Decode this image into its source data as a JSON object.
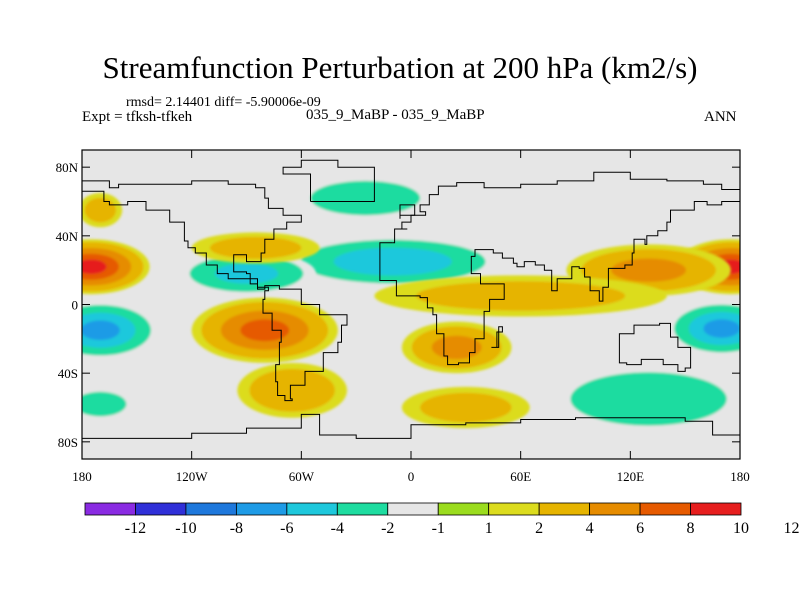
{
  "chart_data": {
    "type": "heatmap",
    "title": "Streamfunction Perturbation at 200 hPa (km2/s)",
    "rmsd_text": "rmsd= 2.14401 diff= -5.90006e-09",
    "left_label": "Expt = tfksh-tfkeh",
    "center_label": "035_9_MaBP - 035_9_MaBP",
    "right_label": "ANN",
    "x_range": [
      -180,
      180
    ],
    "y_range": [
      -90,
      90
    ],
    "x_ticks": [
      {
        "lon": -180,
        "label": "180"
      },
      {
        "lon": -120,
        "label": "120W"
      },
      {
        "lon": -60,
        "label": "60W"
      },
      {
        "lon": 0,
        "label": "0"
      },
      {
        "lon": 60,
        "label": "60E"
      },
      {
        "lon": 120,
        "label": "120E"
      },
      {
        "lon": 180,
        "label": "180"
      }
    ],
    "y_ticks": [
      {
        "lat": 80,
        "label": "80N"
      },
      {
        "lat": 40,
        "label": "40N"
      },
      {
        "lat": 0,
        "label": "0"
      },
      {
        "lat": -40,
        "label": "40S"
      },
      {
        "lat": -80,
        "label": "80S"
      }
    ],
    "colorbar": {
      "colors": [
        "#8a2be2",
        "#3030d8",
        "#1e78dc",
        "#1e9be6",
        "#1ec8dc",
        "#1edca0",
        "#e6e6e6",
        "#9bdc1e",
        "#dcdc1e",
        "#e6b400",
        "#e68c00",
        "#e65a00",
        "#e61e1e"
      ],
      "ticks": [
        "-12",
        "-10",
        "-8",
        "-6",
        "-4",
        "-2",
        "-1",
        "1",
        "2",
        "4",
        "6",
        "8",
        "10",
        "12"
      ]
    },
    "anomalies": [
      {
        "lon": -175,
        "lat": 22,
        "rx": 32,
        "ry": 16,
        "value": 8
      },
      {
        "lon": 175,
        "lat": 22,
        "rx": 30,
        "ry": 16,
        "value": 8
      },
      {
        "lon": -170,
        "lat": -15,
        "rx": 32,
        "ry": 17,
        "value": -6
      },
      {
        "lon": 170,
        "lat": -14,
        "rx": 30,
        "ry": 16,
        "value": -6
      },
      {
        "lon": -80,
        "lat": -15,
        "rx": 40,
        "ry": 19,
        "value": 6
      },
      {
        "lon": 25,
        "lat": -25,
        "rx": 30,
        "ry": 15,
        "value": 4
      },
      {
        "lon": -65,
        "lat": -50,
        "rx": 30,
        "ry": 16,
        "value": 3
      },
      {
        "lon": -10,
        "lat": 25,
        "rx": 60,
        "ry": 15,
        "value": -5
      },
      {
        "lon": -90,
        "lat": 18,
        "rx": 38,
        "ry": 13,
        "value": -4
      },
      {
        "lon": -25,
        "lat": 62,
        "rx": 42,
        "ry": 14,
        "value": -2
      },
      {
        "lon": 130,
        "lat": 20,
        "rx": 45,
        "ry": 15,
        "value": 4
      },
      {
        "lon": -85,
        "lat": 33,
        "rx": 35,
        "ry": 9,
        "value": 2
      },
      {
        "lon": -170,
        "lat": 55,
        "rx": 12,
        "ry": 10,
        "value": 2
      },
      {
        "lon": 60,
        "lat": 5,
        "rx": 80,
        "ry": 12,
        "value": 2
      },
      {
        "lon": 130,
        "lat": -55,
        "rx": 55,
        "ry": 20,
        "value": -3
      },
      {
        "lon": 30,
        "lat": -60,
        "rx": 35,
        "ry": 12,
        "value": 2
      },
      {
        "lon": -170,
        "lat": -58,
        "rx": 20,
        "ry": 10,
        "value": -2
      }
    ],
    "coastlines": [
      [
        [
          -180,
          72
        ],
        [
          -165,
          68
        ],
        [
          -160,
          70
        ],
        [
          -140,
          70
        ],
        [
          -120,
          72
        ],
        [
          -100,
          70
        ],
        [
          -85,
          68
        ],
        [
          -80,
          62
        ],
        [
          -78,
          56
        ],
        [
          -70,
          52
        ],
        [
          -60,
          48
        ],
        [
          -68,
          44
        ],
        [
          -75,
          38
        ],
        [
          -80,
          30
        ],
        [
          -82,
          25
        ],
        [
          -90,
          29
        ],
        [
          -97,
          26
        ],
        [
          -97,
          19
        ],
        [
          -90,
          18
        ],
        [
          -88,
          15
        ],
        [
          -84,
          10
        ],
        [
          -78,
          8
        ],
        [
          -80,
          3
        ],
        [
          -81,
          -5
        ],
        [
          -76,
          -15
        ],
        [
          -71,
          -22
        ],
        [
          -72,
          -35
        ],
        [
          -74,
          -45
        ],
        [
          -73,
          -53
        ],
        [
          -69,
          -56
        ],
        [
          -65,
          -55
        ],
        [
          -66,
          -47
        ],
        [
          -58,
          -39
        ],
        [
          -48,
          -28
        ],
        [
          -40,
          -22
        ],
        [
          -38,
          -12
        ],
        [
          -35,
          -6
        ],
        [
          -50,
          0
        ],
        [
          -60,
          9
        ],
        [
          -72,
          11
        ],
        [
          -80,
          9
        ],
        [
          -84,
          12
        ],
        [
          -88,
          15
        ],
        [
          -92,
          15
        ],
        [
          -100,
          18
        ],
        [
          -106,
          23
        ],
        [
          -112,
          30
        ],
        [
          -118,
          33
        ],
        [
          -122,
          37
        ],
        [
          -124,
          42
        ],
        [
          -124,
          48
        ],
        [
          -132,
          55
        ],
        [
          -145,
          60
        ],
        [
          -155,
          58
        ],
        [
          -165,
          60
        ],
        [
          -168,
          66
        ],
        [
          -180,
          68
        ]
      ],
      [
        [
          -55,
          60
        ],
        [
          -45,
          60
        ],
        [
          -20,
          70
        ],
        [
          -20,
          80
        ],
        [
          -40,
          84
        ],
        [
          -60,
          80
        ],
        [
          -70,
          76
        ],
        [
          -55,
          60
        ]
      ],
      [
        [
          -10,
          36
        ],
        [
          -9,
          44
        ],
        [
          -2,
          44
        ],
        [
          -5,
          48
        ],
        [
          0,
          52
        ],
        [
          8,
          54
        ],
        [
          5,
          58
        ],
        [
          10,
          64
        ],
        [
          15,
          69
        ],
        [
          25,
          71
        ],
        [
          40,
          68
        ],
        [
          60,
          70
        ],
        [
          80,
          72
        ],
        [
          100,
          77
        ],
        [
          120,
          73
        ],
        [
          140,
          72
        ],
        [
          160,
          70
        ],
        [
          170,
          67
        ],
        [
          180,
          66
        ]
      ],
      [
        [
          -10,
          36
        ],
        [
          -17,
          20
        ],
        [
          -17,
          14
        ],
        [
          -8,
          5
        ],
        [
          5,
          4
        ],
        [
          9,
          4
        ],
        [
          9,
          -2
        ],
        [
          12,
          -6
        ],
        [
          14,
          -17
        ],
        [
          18,
          -30
        ],
        [
          20,
          -35
        ],
        [
          26,
          -34
        ],
        [
          32,
          -28
        ],
        [
          35,
          -20
        ],
        [
          40,
          -15
        ],
        [
          40,
          -4
        ],
        [
          43,
          3
        ],
        [
          51,
          12
        ],
        [
          44,
          12
        ],
        [
          38,
          18
        ],
        [
          33,
          28
        ],
        [
          35,
          32
        ],
        [
          45,
          30
        ],
        [
          50,
          27
        ],
        [
          56,
          24
        ],
        [
          58,
          22
        ],
        [
          62,
          25
        ],
        [
          68,
          23
        ],
        [
          73,
          20
        ],
        [
          77,
          8
        ],
        [
          80,
          15
        ],
        [
          88,
          22
        ],
        [
          92,
          21
        ],
        [
          95,
          16
        ],
        [
          98,
          8
        ],
        [
          103,
          2
        ],
        [
          105,
          10
        ],
        [
          108,
          16
        ],
        [
          108,
          21
        ],
        [
          117,
          23
        ],
        [
          121,
          30
        ],
        [
          122,
          38
        ],
        [
          128,
          35
        ],
        [
          129,
          40
        ],
        [
          135,
          43
        ],
        [
          140,
          48
        ],
        [
          142,
          55
        ],
        [
          155,
          60
        ],
        [
          162,
          58
        ],
        [
          170,
          60
        ],
        [
          180,
          65
        ]
      ],
      [
        [
          114,
          -22
        ],
        [
          114,
          -34
        ],
        [
          118,
          -35
        ],
        [
          126,
          -32
        ],
        [
          132,
          -32
        ],
        [
          138,
          -35
        ],
        [
          146,
          -39
        ],
        [
          150,
          -37
        ],
        [
          153,
          -28
        ],
        [
          153,
          -25
        ],
        [
          146,
          -19
        ],
        [
          142,
          -11
        ],
        [
          136,
          -12
        ],
        [
          130,
          -12
        ],
        [
          122,
          -17
        ],
        [
          114,
          -22
        ]
      ],
      [
        [
          -180,
          -78
        ],
        [
          -150,
          -78
        ],
        [
          -120,
          -75
        ],
        [
          -90,
          -72
        ],
        [
          -60,
          -64
        ],
        [
          -50,
          -76
        ],
        [
          -30,
          -78
        ],
        [
          0,
          -70
        ],
        [
          30,
          -69
        ],
        [
          60,
          -67
        ],
        [
          90,
          -66
        ],
        [
          120,
          -66
        ],
        [
          150,
          -68
        ],
        [
          165,
          -76
        ],
        [
          180,
          -78
        ]
      ],
      [
        [
          44,
          -25
        ],
        [
          48,
          -13
        ],
        [
          50,
          -16
        ],
        [
          47,
          -25
        ],
        [
          44,
          -25
        ]
      ],
      [
        [
          -6,
          50
        ],
        [
          -6,
          58
        ],
        [
          -2,
          58
        ],
        [
          2,
          52
        ],
        [
          -6,
          50
        ]
      ]
    ]
  }
}
